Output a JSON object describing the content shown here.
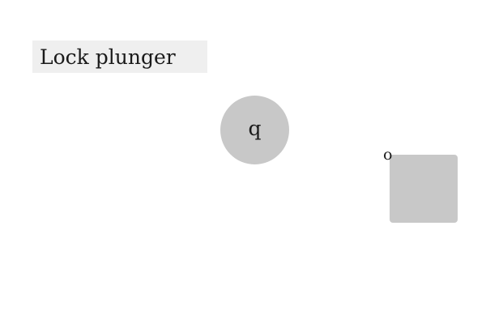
{
  "title_label": "Lock plunger",
  "round_button": {
    "key": "q",
    "color": "#c8c8c8"
  },
  "square_button": {
    "key": "o",
    "color": "#c8c8c8"
  },
  "label_background": "#efefef"
}
